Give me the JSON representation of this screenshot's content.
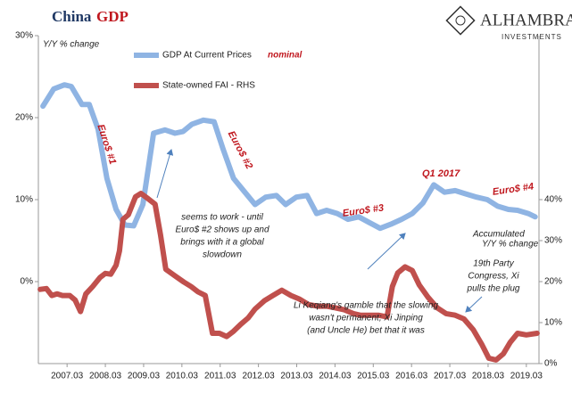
{
  "chart_data": {
    "type": "line",
    "title_parts": [
      "China",
      "GDP"
    ],
    "logo": [
      "ALHAMBRA",
      "INVESTMENTS"
    ],
    "y_axis_label": "Y/Y % change",
    "y2_axis_label": [
      "Accumulated",
      "Y/Y % change"
    ],
    "legend_note": "nominal",
    "xlim": [
      2006.45,
      2019.53
    ],
    "xticks": [
      {
        "value": 2007.2,
        "label": "2007.03"
      },
      {
        "value": 2008.2,
        "label": "2008.03"
      },
      {
        "value": 2009.2,
        "label": "2009.03"
      },
      {
        "value": 2010.2,
        "label": "2010.03"
      },
      {
        "value": 2011.2,
        "label": "2011.03"
      },
      {
        "value": 2012.2,
        "label": "2012.03"
      },
      {
        "value": 2013.2,
        "label": "2013.03"
      },
      {
        "value": 2014.2,
        "label": "2014.03"
      },
      {
        "value": 2015.2,
        "label": "2015.03"
      },
      {
        "value": 2016.2,
        "label": "2016.03"
      },
      {
        "value": 2017.2,
        "label": "2017.03"
      },
      {
        "value": 2018.2,
        "label": "2018.03"
      },
      {
        "value": 2019.2,
        "label": "2019.03"
      }
    ],
    "ylim": [
      -10,
      30
    ],
    "yticks": [
      {
        "value": 30,
        "label": "30%"
      },
      {
        "value": 20,
        "label": "20%"
      },
      {
        "value": 10,
        "label": "10%"
      },
      {
        "value": 0,
        "label": "0%"
      }
    ],
    "y2lim": [
      0,
      80
    ],
    "y2ticks": [
      {
        "value": 40,
        "label": "40%"
      },
      {
        "value": 30,
        "label": "30%"
      },
      {
        "value": 20,
        "label": "20%"
      },
      {
        "value": 10,
        "label": "10%"
      },
      {
        "value": 0,
        "label": "0%"
      }
    ],
    "series": [
      {
        "name": "GDP At Current Prices",
        "color": "#8fb4e3",
        "axis": "y",
        "x": [
          2006.57,
          2006.85,
          2007.13,
          2007.31,
          2007.59,
          2007.78,
          2008.01,
          2008.24,
          2008.48,
          2008.71,
          2008.94,
          2009.18,
          2009.46,
          2009.76,
          2010.02,
          2010.23,
          2010.46,
          2010.76,
          2011.04,
          2011.28,
          2011.55,
          2011.83,
          2012.11,
          2012.39,
          2012.67,
          2012.91,
          2013.19,
          2013.47,
          2013.72,
          2013.98,
          2014.26,
          2014.54,
          2014.82,
          2015.1,
          2015.38,
          2015.66,
          2015.94,
          2016.22,
          2016.5,
          2016.78,
          2017.06,
          2017.34,
          2017.62,
          2017.9,
          2018.18,
          2018.45,
          2018.73,
          2018.97,
          2019.25,
          2019.43
        ],
        "values": [
          21.4,
          23.5,
          24,
          23.8,
          21.6,
          21.6,
          18.6,
          12.6,
          8.8,
          6.9,
          6.8,
          9.4,
          18.1,
          18.5,
          18.1,
          18.3,
          19.2,
          19.7,
          19.5,
          16.1,
          12.6,
          11,
          9.4,
          10.3,
          10.5,
          9.4,
          10.3,
          10.5,
          8.3,
          8.7,
          8.3,
          7.6,
          7.9,
          7.2,
          6.5,
          7.0,
          7.6,
          8.3,
          9.6,
          11.8,
          10.9,
          11.1,
          10.7,
          10.3,
          10,
          9.2,
          8.8,
          8.7,
          8.3,
          7.9
        ]
      },
      {
        "name": "State-owned FAI - RHS",
        "color": "#c0504d",
        "axis": "y2",
        "x": [
          2006.5,
          2006.66,
          2006.8,
          2006.94,
          2007.08,
          2007.27,
          2007.41,
          2007.55,
          2007.69,
          2007.87,
          2008.06,
          2008.2,
          2008.34,
          2008.48,
          2008.57,
          2008.66,
          2008.8,
          2008.99,
          2009.13,
          2009.32,
          2009.5,
          2009.64,
          2009.78,
          2010.02,
          2010.25,
          2010.44,
          2010.62,
          2010.81,
          2011.0,
          2011.18,
          2011.37,
          2011.55,
          2011.74,
          2011.93,
          2012.11,
          2012.35,
          2012.58,
          2012.81,
          2013.05,
          2013.28,
          2013.51,
          2013.75,
          2013.98,
          2014.21,
          2014.45,
          2014.68,
          2014.86,
          2015.1,
          2015.33,
          2015.56,
          2015.7,
          2015.84,
          2016.03,
          2016.22,
          2016.4,
          2016.63,
          2016.87,
          2017.1,
          2017.34,
          2017.57,
          2017.81,
          2018.04,
          2018.22,
          2018.41,
          2018.6,
          2018.78,
          2018.97,
          2019.2,
          2019.48
        ],
        "values": [
          18.1,
          18.3,
          16.6,
          17,
          16.6,
          16.6,
          15.5,
          12.7,
          17,
          18.8,
          21,
          22,
          21.8,
          24,
          27.5,
          35.2,
          36.3,
          40.7,
          41.5,
          40.2,
          38.9,
          31.5,
          23,
          21.4,
          19.9,
          18.8,
          17.5,
          16.6,
          7.4,
          7.4,
          6.6,
          7.9,
          9.6,
          11.1,
          13.3,
          15.3,
          16.6,
          17.9,
          16.6,
          15.7,
          14.4,
          14,
          14,
          13.6,
          13.1,
          12.2,
          11.8,
          11.8,
          11.8,
          11.4,
          18.8,
          22.1,
          23.6,
          22.7,
          19.2,
          16.2,
          13.6,
          12.2,
          11.8,
          10.9,
          8.3,
          4.6,
          1.3,
          0.9,
          2.4,
          5.2,
          7.4,
          7,
          7.4
        ]
      }
    ],
    "annotations": {
      "euro1": "Euro$ #1",
      "euro2": "Euro$ #2",
      "euro3": "Euro$ #3",
      "euro4": "Euro$ #4",
      "q1": "Q1 2017",
      "seems": [
        "seems to work - until",
        "Euro$ #2 shows up and",
        "brings with it a global",
        "slowdown"
      ],
      "li": [
        "Li Keqiang's gamble that the slowing",
        "wasn't permanent; Xi Jinping",
        "(and Uncle He) bet that it was"
      ],
      "party": [
        "19th Party",
        "Congress, Xi",
        "pulls the plug"
      ]
    }
  }
}
